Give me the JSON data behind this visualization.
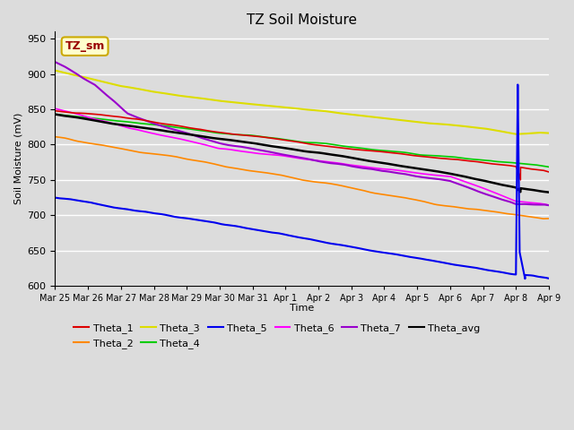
{
  "title": "TZ Soil Moisture",
  "xlabel": "Time",
  "ylabel": "Soil Moisture (mV)",
  "ylim": [
    600,
    960
  ],
  "yticks": [
    600,
    650,
    700,
    750,
    800,
    850,
    900,
    950
  ],
  "background_color": "#dcdcdc",
  "plot_bg_color": "#dcdcdc",
  "annotation_text": "TZ_sm",
  "annotation_bg": "#ffffcc",
  "annotation_edge": "#ccaa00",
  "annotation_text_color": "#990000",
  "series": {
    "Theta_1": {
      "color": "#dd0000",
      "lw": 1.2
    },
    "Theta_2": {
      "color": "#ff8800",
      "lw": 1.2
    },
    "Theta_3": {
      "color": "#dddd00",
      "lw": 1.5
    },
    "Theta_4": {
      "color": "#00cc00",
      "lw": 1.2
    },
    "Theta_5": {
      "color": "#0000ee",
      "lw": 1.5
    },
    "Theta_6": {
      "color": "#ff00ff",
      "lw": 1.2
    },
    "Theta_7": {
      "color": "#9900cc",
      "lw": 1.5
    },
    "Theta_avg": {
      "color": "#000000",
      "lw": 1.8
    }
  },
  "tick_labels": [
    "Mar 25",
    "Mar 26",
    "Mar 27",
    "Mar 28",
    "Mar 29",
    "Mar 30",
    "Mar 31",
    "Apr 1",
    "Apr 2",
    "Apr 3",
    "Apr 4",
    "Apr 5",
    "Apr 6",
    "Apr 7",
    "Apr 8",
    "Apr 9"
  ]
}
